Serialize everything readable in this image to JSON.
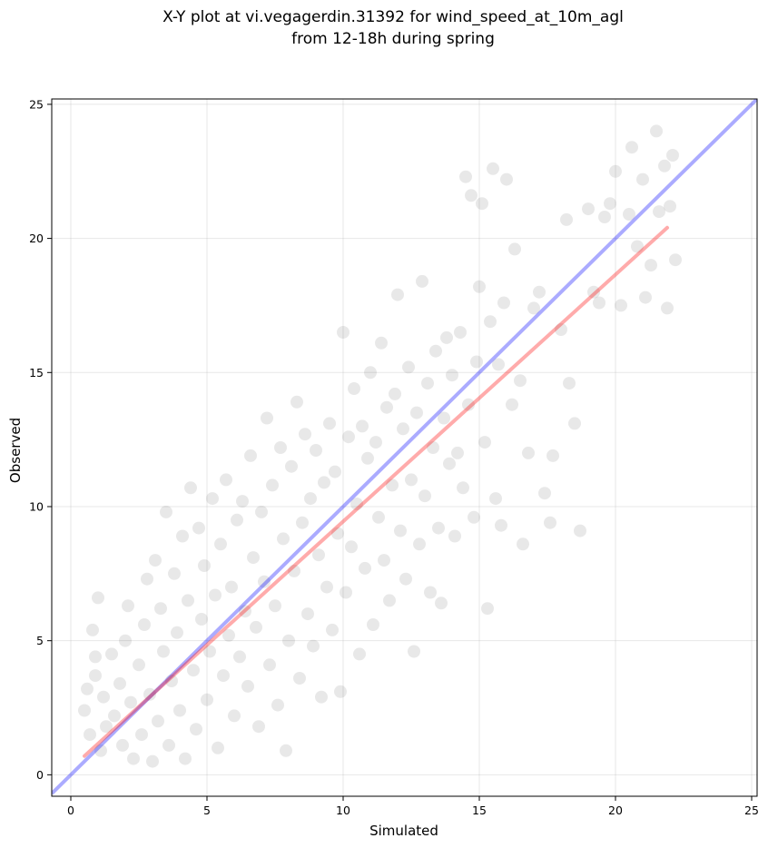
{
  "chart_data": {
    "type": "scatter",
    "title_lines": [
      "X-Y plot at vi.vegagerdin.31392 for wind_speed_at_10m_agl",
      "from 12-18h during spring"
    ],
    "xlabel": "Simulated",
    "ylabel": "Observed",
    "xlim": [
      -0.7,
      25.2
    ],
    "ylim": [
      -0.8,
      25.2
    ],
    "xticks": [
      0,
      5,
      10,
      15,
      20,
      25
    ],
    "yticks": [
      0,
      5,
      10,
      15,
      20,
      25
    ],
    "grid": true,
    "point_color": "#000000",
    "point_alpha": 0.09,
    "identity_line": {
      "x": [
        -0.7,
        25.2
      ],
      "y": [
        -0.7,
        25.2
      ],
      "color": "#0000ff",
      "alpha": 0.33
    },
    "regression_line": {
      "x": [
        0.5,
        21.9
      ],
      "y": [
        0.7,
        20.4
      ],
      "color": "#ff0000",
      "alpha": 0.33
    },
    "series": [
      {
        "points": [
          [
            0.5,
            2.4
          ],
          [
            0.6,
            3.2
          ],
          [
            0.7,
            1.5
          ],
          [
            0.8,
            5.4
          ],
          [
            0.9,
            4.4
          ],
          [
            1.0,
            6.6
          ],
          [
            0.9,
            3.7
          ],
          [
            1.2,
            2.9
          ],
          [
            1.1,
            0.9
          ],
          [
            1.3,
            1.8
          ],
          [
            1.5,
            4.5
          ],
          [
            1.6,
            2.2
          ],
          [
            1.8,
            3.4
          ],
          [
            1.9,
            1.1
          ],
          [
            2.0,
            5.0
          ],
          [
            2.1,
            6.3
          ],
          [
            2.2,
            2.7
          ],
          [
            2.3,
            0.6
          ],
          [
            2.5,
            4.1
          ],
          [
            2.6,
            1.5
          ],
          [
            2.7,
            5.6
          ],
          [
            2.8,
            7.3
          ],
          [
            2.9,
            3.0
          ],
          [
            3.0,
            0.5
          ],
          [
            3.1,
            8.0
          ],
          [
            3.2,
            2.0
          ],
          [
            3.3,
            6.2
          ],
          [
            3.4,
            4.6
          ],
          [
            3.5,
            9.8
          ],
          [
            3.6,
            1.1
          ],
          [
            3.7,
            3.5
          ],
          [
            3.8,
            7.5
          ],
          [
            3.9,
            5.3
          ],
          [
            4.0,
            2.4
          ],
          [
            4.1,
            8.9
          ],
          [
            4.2,
            0.6
          ],
          [
            4.3,
            6.5
          ],
          [
            4.4,
            10.7
          ],
          [
            4.5,
            3.9
          ],
          [
            4.6,
            1.7
          ],
          [
            4.7,
            9.2
          ],
          [
            4.8,
            5.8
          ],
          [
            4.9,
            7.8
          ],
          [
            5.0,
            2.8
          ],
          [
            5.1,
            4.6
          ],
          [
            5.2,
            10.3
          ],
          [
            5.3,
            6.7
          ],
          [
            5.4,
            1.0
          ],
          [
            5.5,
            8.6
          ],
          [
            5.6,
            3.7
          ],
          [
            5.7,
            11.0
          ],
          [
            5.8,
            5.2
          ],
          [
            5.9,
            7.0
          ],
          [
            6.0,
            2.2
          ],
          [
            6.1,
            9.5
          ],
          [
            6.2,
            4.4
          ],
          [
            6.3,
            10.2
          ],
          [
            6.4,
            6.1
          ],
          [
            6.5,
            3.3
          ],
          [
            6.6,
            11.9
          ],
          [
            6.7,
            8.1
          ],
          [
            6.8,
            5.5
          ],
          [
            6.9,
            1.8
          ],
          [
            7.0,
            9.8
          ],
          [
            7.1,
            7.2
          ],
          [
            7.2,
            13.3
          ],
          [
            7.3,
            4.1
          ],
          [
            7.4,
            10.8
          ],
          [
            7.5,
            6.3
          ],
          [
            7.6,
            2.6
          ],
          [
            7.7,
            12.2
          ],
          [
            7.8,
            8.8
          ],
          [
            7.9,
            0.9
          ],
          [
            8.0,
            5.0
          ],
          [
            8.1,
            11.5
          ],
          [
            8.2,
            7.6
          ],
          [
            8.3,
            13.9
          ],
          [
            8.4,
            3.6
          ],
          [
            8.5,
            9.4
          ],
          [
            8.6,
            12.7
          ],
          [
            8.7,
            6.0
          ],
          [
            8.8,
            10.3
          ],
          [
            8.9,
            4.8
          ],
          [
            9.0,
            12.1
          ],
          [
            9.1,
            8.2
          ],
          [
            9.2,
            2.9
          ],
          [
            9.3,
            10.9
          ],
          [
            9.4,
            7.0
          ],
          [
            9.5,
            13.1
          ],
          [
            9.6,
            5.4
          ],
          [
            9.7,
            11.3
          ],
          [
            9.8,
            9.0
          ],
          [
            9.9,
            3.1
          ],
          [
            10.0,
            16.5
          ],
          [
            10.1,
            6.8
          ],
          [
            10.2,
            12.6
          ],
          [
            10.3,
            8.5
          ],
          [
            10.4,
            14.4
          ],
          [
            10.5,
            10.1
          ],
          [
            10.6,
            4.5
          ],
          [
            10.7,
            13.0
          ],
          [
            10.8,
            7.7
          ],
          [
            10.9,
            11.8
          ],
          [
            11.0,
            15.0
          ],
          [
            11.1,
            5.6
          ],
          [
            11.2,
            12.4
          ],
          [
            11.3,
            9.6
          ],
          [
            11.4,
            16.1
          ],
          [
            11.5,
            8.0
          ],
          [
            11.6,
            13.7
          ],
          [
            11.7,
            6.5
          ],
          [
            11.8,
            10.8
          ],
          [
            11.9,
            14.2
          ],
          [
            12.0,
            17.9
          ],
          [
            12.1,
            9.1
          ],
          [
            12.2,
            12.9
          ],
          [
            12.3,
            7.3
          ],
          [
            12.4,
            15.2
          ],
          [
            12.5,
            11.0
          ],
          [
            12.6,
            4.6
          ],
          [
            12.7,
            13.5
          ],
          [
            12.8,
            8.6
          ],
          [
            12.9,
            18.4
          ],
          [
            13.0,
            10.4
          ],
          [
            13.1,
            14.6
          ],
          [
            13.2,
            6.8
          ],
          [
            13.3,
            12.2
          ],
          [
            13.4,
            15.8
          ],
          [
            13.5,
            9.2
          ],
          [
            13.6,
            6.4
          ],
          [
            13.7,
            13.3
          ],
          [
            13.8,
            16.3
          ],
          [
            13.9,
            11.6
          ],
          [
            14.0,
            14.9
          ],
          [
            14.1,
            8.9
          ],
          [
            14.2,
            12.0
          ],
          [
            14.3,
            16.5
          ],
          [
            14.4,
            10.7
          ],
          [
            14.5,
            22.3
          ],
          [
            14.6,
            13.8
          ],
          [
            14.7,
            21.6
          ],
          [
            14.8,
            9.6
          ],
          [
            14.9,
            15.4
          ],
          [
            15.0,
            18.2
          ],
          [
            15.1,
            21.3
          ],
          [
            15.2,
            12.4
          ],
          [
            15.3,
            6.2
          ],
          [
            15.4,
            16.9
          ],
          [
            15.5,
            22.6
          ],
          [
            15.6,
            10.3
          ],
          [
            15.7,
            15.3
          ],
          [
            15.8,
            9.3
          ],
          [
            15.9,
            17.6
          ],
          [
            16.0,
            22.2
          ],
          [
            16.2,
            13.8
          ],
          [
            16.3,
            19.6
          ],
          [
            16.5,
            14.7
          ],
          [
            16.6,
            8.6
          ],
          [
            16.8,
            12.0
          ],
          [
            17.0,
            17.4
          ],
          [
            17.2,
            18.0
          ],
          [
            17.4,
            10.5
          ],
          [
            17.6,
            9.4
          ],
          [
            17.7,
            11.9
          ],
          [
            18.0,
            16.6
          ],
          [
            18.2,
            20.7
          ],
          [
            18.3,
            14.6
          ],
          [
            18.5,
            13.1
          ],
          [
            18.7,
            9.1
          ],
          [
            19.0,
            21.1
          ],
          [
            19.2,
            18.0
          ],
          [
            19.4,
            17.6
          ],
          [
            19.6,
            20.8
          ],
          [
            19.8,
            21.3
          ],
          [
            20.0,
            22.5
          ],
          [
            20.2,
            17.5
          ],
          [
            20.5,
            20.9
          ],
          [
            20.6,
            23.4
          ],
          [
            20.8,
            19.7
          ],
          [
            21.0,
            22.2
          ],
          [
            21.1,
            17.8
          ],
          [
            21.3,
            19.0
          ],
          [
            21.5,
            24.0
          ],
          [
            21.6,
            21.0
          ],
          [
            21.8,
            22.7
          ],
          [
            21.9,
            17.4
          ],
          [
            22.0,
            21.2
          ],
          [
            22.1,
            23.1
          ],
          [
            22.2,
            19.2
          ]
        ]
      }
    ]
  }
}
